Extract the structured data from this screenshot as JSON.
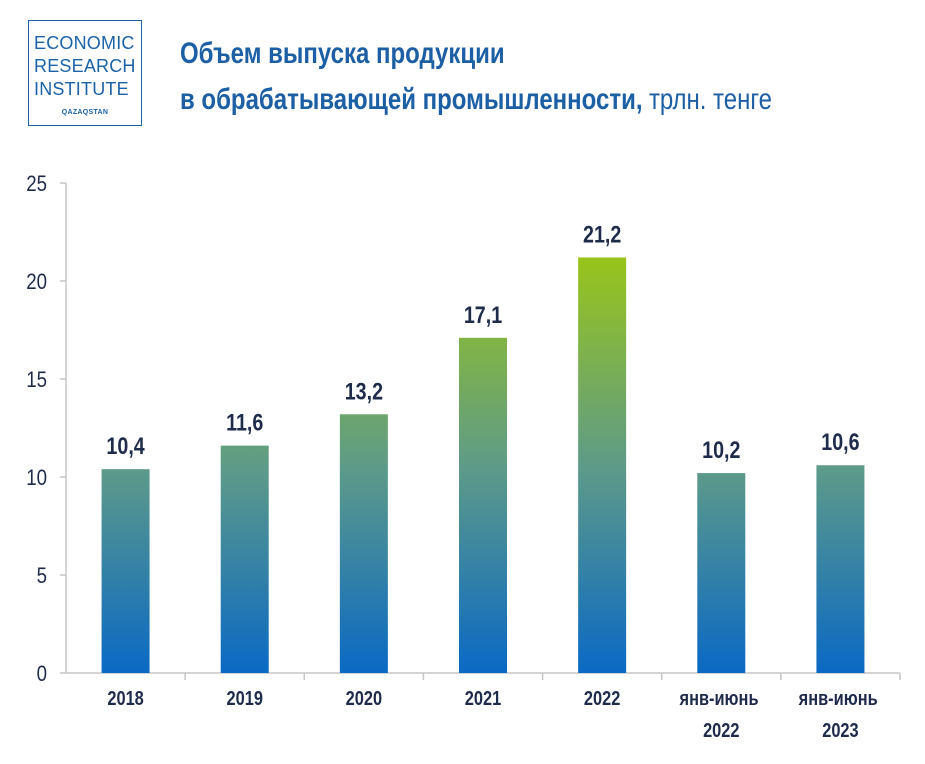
{
  "logo": {
    "line1": "ECONOMIC",
    "line2": "RESEARCH",
    "line3": "INSTITUTE",
    "sub": "QAZAQSTAN"
  },
  "colors": {
    "brand": "#1b62a8",
    "title": "#1d5fa4",
    "text": "#1f2b4b",
    "axis": "#c6c6c6",
    "bar_bottom": "#0a69c4",
    "bar_mid": "#5e9b88",
    "bar_top": "#98c41b"
  },
  "chart_data": {
    "type": "bar",
    "title": {
      "line1": "Объем выпуска продукции",
      "line2": "в обрабатывающей промышленности,",
      "unit": "трлн. тенге"
    },
    "xlabel": "",
    "ylabel": "",
    "categories": [
      "2018",
      "2019",
      "2020",
      "2021",
      "2022",
      "янв-июнь 2022",
      "янв-июнь 2023"
    ],
    "values": [
      10.4,
      11.6,
      13.2,
      17.1,
      21.2,
      10.2,
      10.6
    ],
    "value_labels": [
      "10,4",
      "11,6",
      "13,2",
      "17,1",
      "21,2",
      "10,2",
      "10,6"
    ],
    "yticks": [
      0,
      5,
      10,
      15,
      20,
      25
    ],
    "ylim": [
      0,
      25
    ],
    "grid": false,
    "legend": "none"
  }
}
